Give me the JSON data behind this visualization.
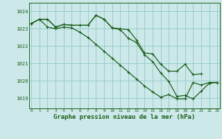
{
  "bg_color": "#cce8e8",
  "grid_color": "#99cccc",
  "line_color": "#1a5e1a",
  "xlabel": "Graphe pression niveau de la mer (hPa)",
  "xlabel_fontsize": 6.5,
  "yticks": [
    1019,
    1020,
    1021,
    1022,
    1023,
    1024
  ],
  "xticks": [
    0,
    1,
    2,
    3,
    4,
    5,
    6,
    7,
    8,
    9,
    10,
    11,
    12,
    13,
    14,
    15,
    16,
    17,
    18,
    19,
    20,
    21,
    22,
    23
  ],
  "ylim": [
    1018.4,
    1024.5
  ],
  "xlim": [
    -0.3,
    23.3
  ],
  "series": [
    [
      1023.3,
      1023.55,
      1023.55,
      1023.1,
      1023.25,
      1023.2,
      1023.2,
      1023.2,
      1023.78,
      1023.55,
      1023.05,
      1023.0,
      1022.95,
      1022.35,
      1021.6,
      1021.55,
      1020.95,
      1020.55,
      1020.55,
      1020.95,
      1020.35,
      1020.4,
      null,
      null
    ],
    [
      1023.3,
      1023.55,
      1023.55,
      1023.1,
      1023.25,
      1023.2,
      1023.2,
      1023.2,
      1023.78,
      1023.55,
      1023.05,
      1022.95,
      1022.45,
      1022.2,
      1021.5,
      1021.1,
      1020.45,
      1019.95,
      1019.1,
      1019.15,
      1018.95,
      1019.4,
      1019.85,
      1019.9
    ],
    [
      1023.3,
      1023.55,
      1023.1,
      1023.0,
      1023.1,
      1023.05,
      1022.8,
      1022.5,
      1022.1,
      1021.7,
      1021.3,
      1020.9,
      1020.5,
      1020.1,
      1019.7,
      1019.35,
      1019.05,
      1019.2,
      1018.95,
      1018.95,
      1019.9,
      1019.75,
      1019.9,
      1019.9
    ]
  ]
}
